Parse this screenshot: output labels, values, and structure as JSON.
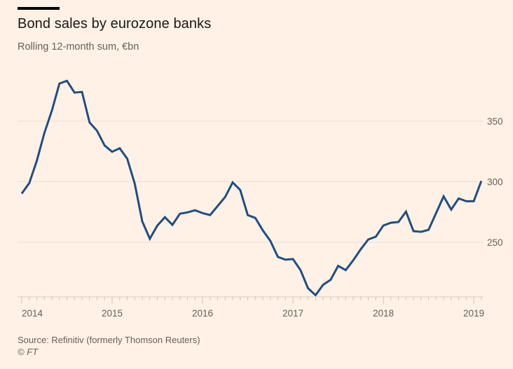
{
  "header": {
    "title": "Bond sales by eurozone banks",
    "subtitle": "Rolling 12-month sum, €bn"
  },
  "footer": {
    "source": "Source: Refinitiv (formerly Thomson Reuters)",
    "copyright": "© FT"
  },
  "colors": {
    "background": "#FFF1E5",
    "line": "#1f4e82",
    "gridline": "#e9ddd2",
    "text": "#66605C"
  },
  "chart_data": {
    "type": "line",
    "title": "Bond sales by eurozone banks",
    "subtitle": "Rolling 12-month sum, €bn",
    "xlabel": "",
    "ylabel": "€bn",
    "x_start": "2014-01",
    "x_frequency": "monthly",
    "xlim": [
      "2014-01",
      "2019-02"
    ],
    "ylim": [
      199,
      400
    ],
    "y_ticks": [
      250,
      300,
      350
    ],
    "y_axis_side": "right",
    "x_ticks": [
      "2014",
      "2015",
      "2016",
      "2017",
      "2018",
      "2019"
    ],
    "grid": true,
    "legend": "none",
    "series": [
      {
        "name": "Bond sales (rolling 12-month sum)",
        "values": [
          290.2,
          298.9,
          317.2,
          340.2,
          358.6,
          381.0,
          383.3,
          373.6,
          374.1,
          348.9,
          342.0,
          329.9,
          324.7,
          327.6,
          319.0,
          298.3,
          267.2,
          252.9,
          263.8,
          270.7,
          264.4,
          273.6,
          274.7,
          276.4,
          274.1,
          272.4,
          279.9,
          287.4,
          299.4,
          293.1,
          272.4,
          270.1,
          259.8,
          251.1,
          237.9,
          235.6,
          236.2,
          227.0,
          212.1,
          206.3,
          214.9,
          219.0,
          230.5,
          227.0,
          235.1,
          244.3,
          252.3,
          254.6,
          263.8,
          266.1,
          266.7,
          275.3,
          259.2,
          258.6,
          260.3,
          274.1,
          287.9,
          277.0,
          286.2,
          283.9,
          283.9,
          300.6
        ]
      }
    ]
  }
}
